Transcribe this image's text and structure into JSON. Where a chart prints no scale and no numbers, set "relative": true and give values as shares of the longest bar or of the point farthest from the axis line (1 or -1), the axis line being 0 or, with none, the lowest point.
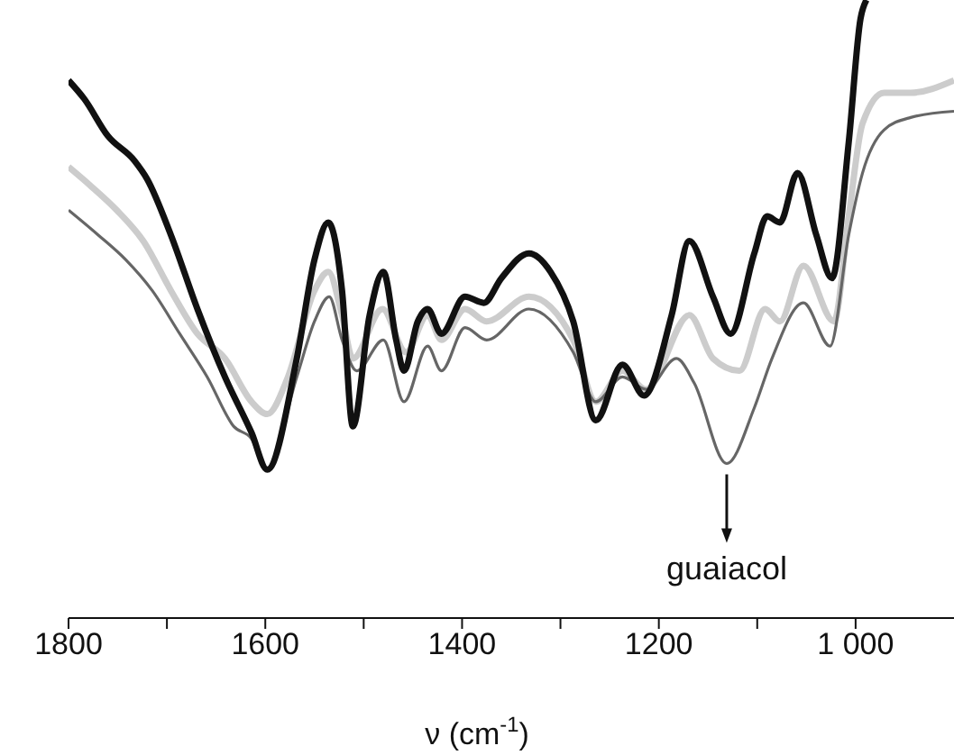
{
  "chart_data": {
    "type": "line",
    "relative": true,
    "xlabel": "ν (cm$^{-1}$)",
    "xlim": [
      1800,
      900
    ],
    "xticks": [
      1800,
      {
        "value": 1700,
        "label": null
      },
      1600,
      {
        "value": 1500,
        "label": null
      },
      1400,
      {
        "value": 1300,
        "label": null
      },
      1200,
      {
        "value": 1100,
        "label": null
      },
      {
        "value": 1000,
        "label": "1 000"
      }
    ],
    "annotations": [
      {
        "text": "guaiacol",
        "x": 1131,
        "y": 0.25
      }
    ],
    "series": [
      {
        "color": "#cccccc",
        "x": [
          1800,
          1778,
          1751,
          1724,
          1696,
          1669,
          1641,
          1614,
          1598,
          1577,
          1550,
          1536,
          1522,
          1511,
          1481,
          1457,
          1435,
          1421,
          1397,
          1375,
          1332,
          1287,
          1264,
          1237,
          1213,
          1169,
          1145,
          1118,
          1092,
          1077,
          1053,
          1022,
          1007,
          993,
          971,
          944,
          900
        ],
        "values": [
          0.73,
          0.7,
          0.66,
          0.61,
          0.53,
          0.46,
          0.42,
          0.35,
          0.33,
          0.39,
          0.53,
          0.56,
          0.49,
          0.42,
          0.5,
          0.43,
          0.49,
          0.45,
          0.5,
          0.48,
          0.52,
          0.45,
          0.35,
          0.4,
          0.37,
          0.49,
          0.42,
          0.4,
          0.5,
          0.48,
          0.57,
          0.48,
          0.65,
          0.8,
          0.85,
          0.85,
          0.87
        ]
      },
      {
        "color": "#666666",
        "x": [
          1800,
          1770,
          1742,
          1715,
          1687,
          1659,
          1632,
          1614,
          1599,
          1568,
          1550,
          1535,
          1522,
          1507,
          1480,
          1459,
          1435,
          1421,
          1397,
          1375,
          1332,
          1287,
          1264,
          1237,
          1213,
          1182,
          1164,
          1131,
          1103,
          1085,
          1053,
          1026,
          1007,
          993,
          971,
          944,
          900
        ],
        "values": [
          0.66,
          0.62,
          0.58,
          0.53,
          0.46,
          0.39,
          0.31,
          0.29,
          0.24,
          0.39,
          0.48,
          0.52,
          0.45,
          0.4,
          0.45,
          0.35,
          0.44,
          0.4,
          0.47,
          0.45,
          0.5,
          0.43,
          0.35,
          0.39,
          0.37,
          0.42,
          0.38,
          0.25,
          0.34,
          0.42,
          0.51,
          0.44,
          0.62,
          0.72,
          0.79,
          0.81,
          0.82
        ]
      },
      {
        "color": "#111111",
        "x": [
          1800,
          1784,
          1760,
          1733,
          1720,
          1696,
          1669,
          1641,
          1614,
          1598,
          1568,
          1550,
          1536,
          1522,
          1511,
          1494,
          1480,
          1467,
          1459,
          1445,
          1435,
          1421,
          1397,
          1378,
          1360,
          1332,
          1310,
          1287,
          1264,
          1237,
          1215,
          1187,
          1169,
          1145,
          1127,
          1103,
          1090,
          1077,
          1059,
          1040,
          1024,
          1007,
          995,
          989
        ],
        "values": [
          0.87,
          0.84,
          0.78,
          0.74,
          0.71,
          0.62,
          0.5,
          0.39,
          0.3,
          0.24,
          0.42,
          0.58,
          0.64,
          0.53,
          0.31,
          0.49,
          0.56,
          0.45,
          0.4,
          0.48,
          0.5,
          0.46,
          0.52,
          0.51,
          0.55,
          0.59,
          0.56,
          0.48,
          0.32,
          0.41,
          0.36,
          0.49,
          0.61,
          0.52,
          0.46,
          0.59,
          0.65,
          0.64,
          0.72,
          0.62,
          0.55,
          0.77,
          0.97,
          1.0
        ]
      }
    ]
  }
}
